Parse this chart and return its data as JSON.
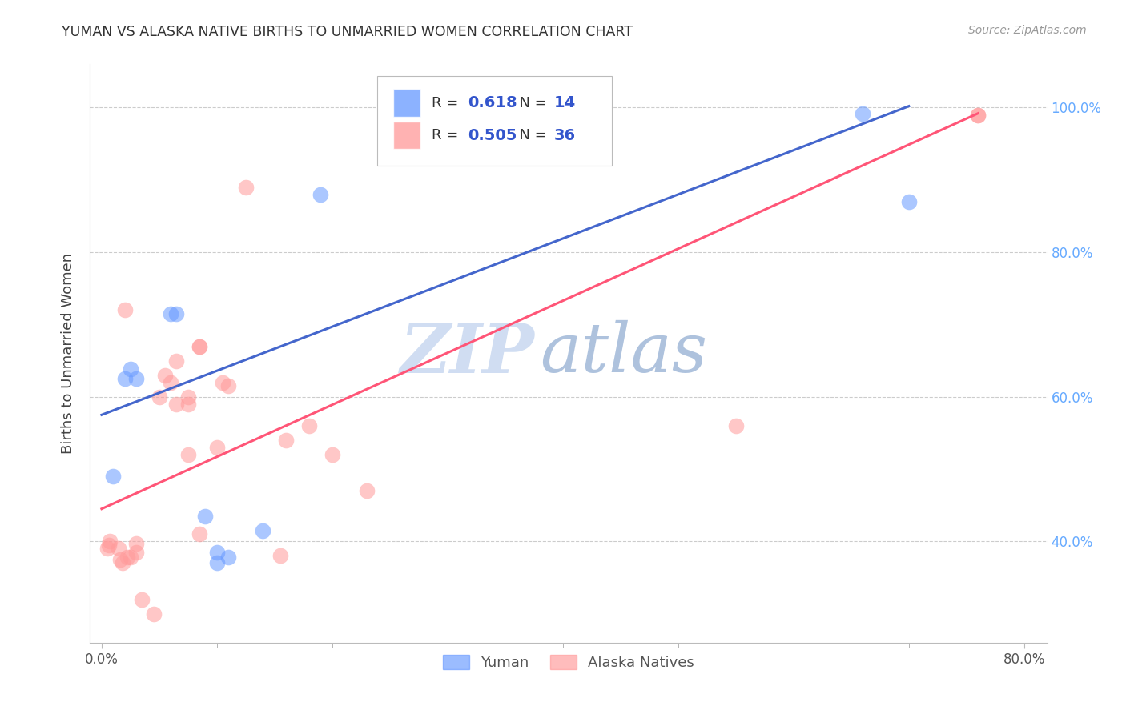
{
  "title": "YUMAN VS ALASKA NATIVE BIRTHS TO UNMARRIED WOMEN CORRELATION CHART",
  "source": "Source: ZipAtlas.com",
  "ylabel": "Births to Unmarried Women",
  "yuman_R": 0.618,
  "yuman_N": 14,
  "alaska_R": 0.505,
  "alaska_N": 36,
  "yuman_color": "#6699FF",
  "alaska_color": "#FF9999",
  "yuman_scatter_x": [
    0.01,
    0.02,
    0.025,
    0.03,
    0.06,
    0.065,
    0.09,
    0.1,
    0.1,
    0.11,
    0.14,
    0.19,
    0.66,
    0.7
  ],
  "yuman_scatter_y": [
    0.49,
    0.625,
    0.638,
    0.625,
    0.715,
    0.715,
    0.435,
    0.385,
    0.37,
    0.378,
    0.415,
    0.88,
    0.992,
    0.87
  ],
  "alaska_scatter_x": [
    0.005,
    0.006,
    0.007,
    0.015,
    0.016,
    0.018,
    0.02,
    0.022,
    0.025,
    0.03,
    0.03,
    0.035,
    0.045,
    0.05,
    0.055,
    0.06,
    0.065,
    0.065,
    0.075,
    0.075,
    0.075,
    0.085,
    0.085,
    0.085,
    0.1,
    0.105,
    0.11,
    0.125,
    0.155,
    0.16,
    0.18,
    0.2,
    0.23,
    0.55,
    0.76,
    0.76
  ],
  "alaska_scatter_y": [
    0.39,
    0.395,
    0.4,
    0.39,
    0.375,
    0.37,
    0.72,
    0.378,
    0.378,
    0.397,
    0.385,
    0.32,
    0.3,
    0.6,
    0.63,
    0.62,
    0.65,
    0.59,
    0.6,
    0.59,
    0.52,
    0.41,
    0.67,
    0.67,
    0.53,
    0.62,
    0.615,
    0.89,
    0.38,
    0.54,
    0.56,
    0.52,
    0.47,
    0.56,
    0.99,
    0.99
  ],
  "xmin": -0.01,
  "xmax": 0.82,
  "ymin": 0.26,
  "ymax": 1.06,
  "x_ticks": [
    0.0,
    0.8
  ],
  "x_tick_labels": [
    "0.0%",
    "80.0%"
  ],
  "y_ticks": [
    0.4,
    0.6,
    0.8,
    1.0
  ],
  "y_tick_labels": [
    "40.0%",
    "60.0%",
    "80.0%",
    "100.0%"
  ],
  "watermark_zip": "ZIP",
  "watermark_atlas": "atlas",
  "blue_line_x": [
    0.0,
    0.7
  ],
  "blue_line_y": [
    0.575,
    1.002
  ],
  "pink_line_x": [
    0.0,
    0.76
  ],
  "pink_line_y": [
    0.445,
    0.992
  ]
}
